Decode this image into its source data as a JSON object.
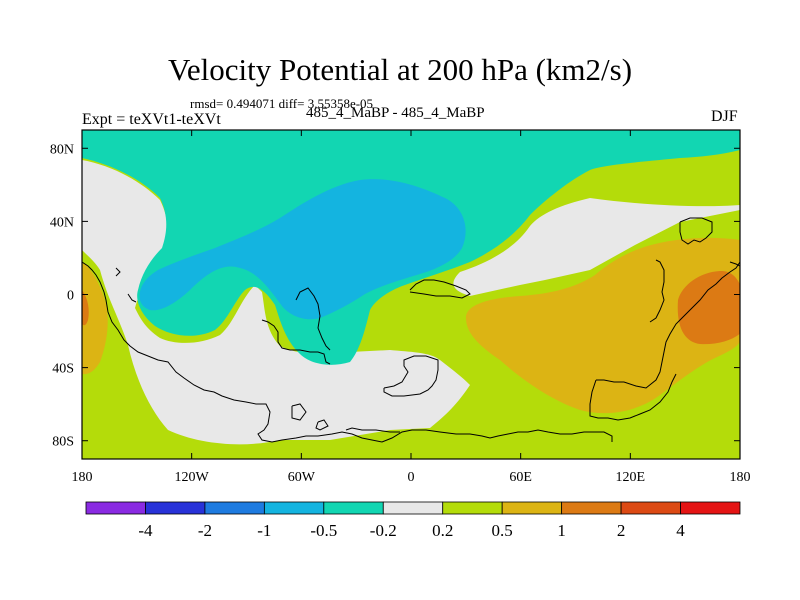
{
  "chart_data": {
    "type": "heatmap",
    "title": "Velocity Potential at 200 hPa (km2/s)",
    "stats_text": "rmsd= 0.494071 diff= 3.55358e-05",
    "left_label": "Expt = teXVt1-teXVt",
    "center_label": "485_4_MaBP - 485_4_MaBP",
    "right_label": "DJF",
    "x_axis": {
      "range": [
        -180,
        180
      ],
      "tick_values": [
        -180,
        -120,
        -60,
        0,
        60,
        120,
        180
      ],
      "tick_labels": [
        "180",
        "120W",
        "60W",
        "0",
        "60E",
        "120E",
        "180"
      ]
    },
    "y_axis": {
      "range": [
        -90,
        90
      ],
      "tick_values": [
        80,
        40,
        0,
        -40,
        -80
      ],
      "tick_labels": [
        "80N",
        "40N",
        "0",
        "40S",
        "80S"
      ]
    },
    "colorbar": {
      "boundaries": [
        "-4",
        "-2",
        "-1",
        "-0.5",
        "-0.2",
        "0.2",
        "0.5",
        "1",
        "2",
        "4"
      ],
      "colors": [
        "#8a2be2",
        "#2832d8",
        "#1e7be0",
        "#14b4e0",
        "#12d6b2",
        "#e8e8e8",
        "#b4dc0a",
        "#dcb414",
        "#dc7a14",
        "#dc4a14",
        "#e41414"
      ]
    },
    "fields": {
      "weak_negative_color": "#12d6b2",
      "neutral_color": "#e8e8e8",
      "strong_negative_color": "#14b4e0",
      "weak_positive_color": "#b4dc0a",
      "moderate_positive_color": "#dcb414",
      "strong_positive_color": "#dc7a14"
    }
  }
}
